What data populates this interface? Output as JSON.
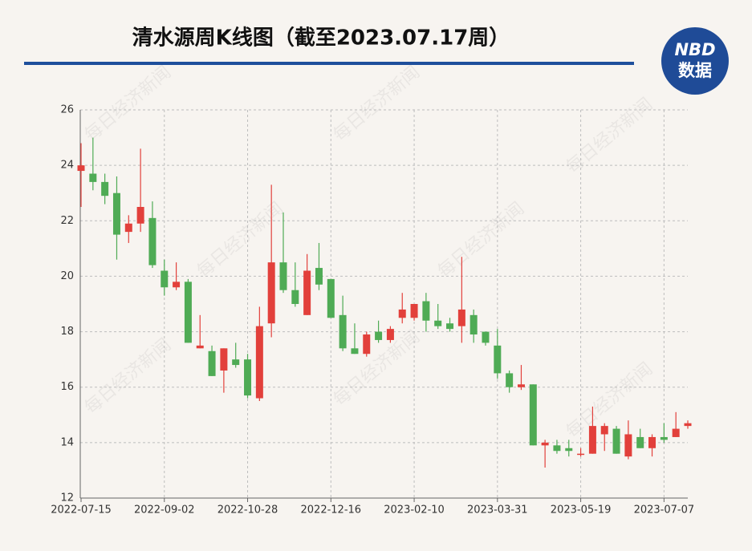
{
  "chart_data": {
    "type": "candlestick",
    "title": "清水源周K线图（截至2023.07.17周）",
    "logo_top": "NBD",
    "logo_bottom": "数据",
    "watermark": "每日经济新闻",
    "categories": [
      "2022-07-15",
      null,
      null,
      null,
      null,
      null,
      null,
      "2022-09-02",
      null,
      null,
      null,
      null,
      null,
      null,
      "2022-10-28",
      null,
      null,
      null,
      null,
      null,
      null,
      "2022-12-16",
      null,
      null,
      null,
      null,
      null,
      null,
      "2023-02-10",
      null,
      null,
      null,
      null,
      null,
      null,
      "2023-03-31",
      null,
      null,
      null,
      null,
      null,
      null,
      "2023-05-19",
      null,
      null,
      null,
      null,
      null,
      null,
      "2023-07-07",
      null,
      null
    ],
    "open": [
      23.8,
      23.7,
      23.4,
      23.0,
      21.6,
      21.9,
      22.1,
      20.2,
      19.6,
      19.8,
      17.4,
      17.3,
      16.6,
      17.0,
      17.0,
      15.6,
      18.3,
      20.5,
      19.5,
      18.6,
      20.3,
      19.9,
      18.6,
      17.4,
      17.2,
      18.0,
      17.7,
      18.5,
      18.5,
      19.1,
      18.4,
      18.3,
      18.2,
      18.6,
      18.0,
      17.5,
      16.5,
      16.0,
      16.1,
      13.9,
      13.9,
      13.8,
      13.6,
      13.6,
      14.3,
      14.5,
      13.5,
      14.2,
      13.8,
      14.2,
      14.2,
      14.6
    ],
    "high": [
      24.8,
      25.0,
      23.7,
      23.6,
      22.2,
      24.6,
      22.7,
      20.6,
      20.5,
      19.9,
      18.6,
      17.5,
      17.4,
      17.6,
      17.2,
      18.9,
      23.3,
      22.3,
      20.5,
      20.8,
      21.2,
      19.9,
      19.3,
      18.3,
      18.0,
      18.4,
      18.2,
      19.4,
      19.0,
      19.4,
      19.0,
      18.5,
      20.7,
      18.8,
      18.0,
      18.1,
      16.6,
      16.8,
      16.1,
      14.1,
      14.1,
      14.1,
      13.8,
      15.3,
      14.7,
      14.6,
      14.8,
      14.5,
      14.3,
      14.7,
      15.1,
      14.8
    ],
    "low": [
      22.5,
      23.1,
      22.6,
      20.6,
      21.2,
      21.6,
      20.3,
      19.3,
      19.5,
      17.6,
      17.4,
      16.4,
      15.8,
      16.7,
      15.6,
      15.5,
      17.8,
      19.4,
      18.9,
      18.6,
      19.5,
      18.5,
      17.3,
      17.2,
      17.1,
      17.6,
      17.6,
      18.3,
      18.4,
      18.0,
      18.1,
      18.0,
      17.6,
      17.6,
      17.5,
      16.3,
      15.8,
      15.9,
      13.9,
      13.1,
      13.6,
      13.5,
      13.5,
      13.6,
      13.7,
      13.6,
      13.4,
      13.8,
      13.5,
      14.0,
      14.2,
      14.5
    ],
    "close": [
      24.0,
      23.4,
      22.9,
      21.5,
      21.9,
      22.5,
      20.4,
      19.6,
      19.8,
      17.6,
      17.5,
      16.4,
      17.4,
      16.8,
      15.7,
      18.2,
      20.5,
      19.5,
      19.0,
      20.2,
      19.7,
      18.5,
      17.4,
      17.2,
      17.9,
      17.7,
      18.1,
      18.8,
      19.0,
      18.4,
      18.2,
      18.1,
      18.8,
      17.9,
      17.6,
      16.5,
      16.0,
      16.1,
      13.9,
      14.0,
      13.7,
      13.7,
      13.6,
      14.6,
      14.6,
      13.6,
      14.3,
      13.8,
      14.2,
      14.1,
      14.5,
      14.7
    ],
    "up_color": "#e2403b",
    "down_color": "#4fab55",
    "ylim": [
      12,
      26
    ],
    "yticks": [
      12,
      14,
      16,
      18,
      20,
      22,
      24,
      26
    ],
    "grid": true
  }
}
